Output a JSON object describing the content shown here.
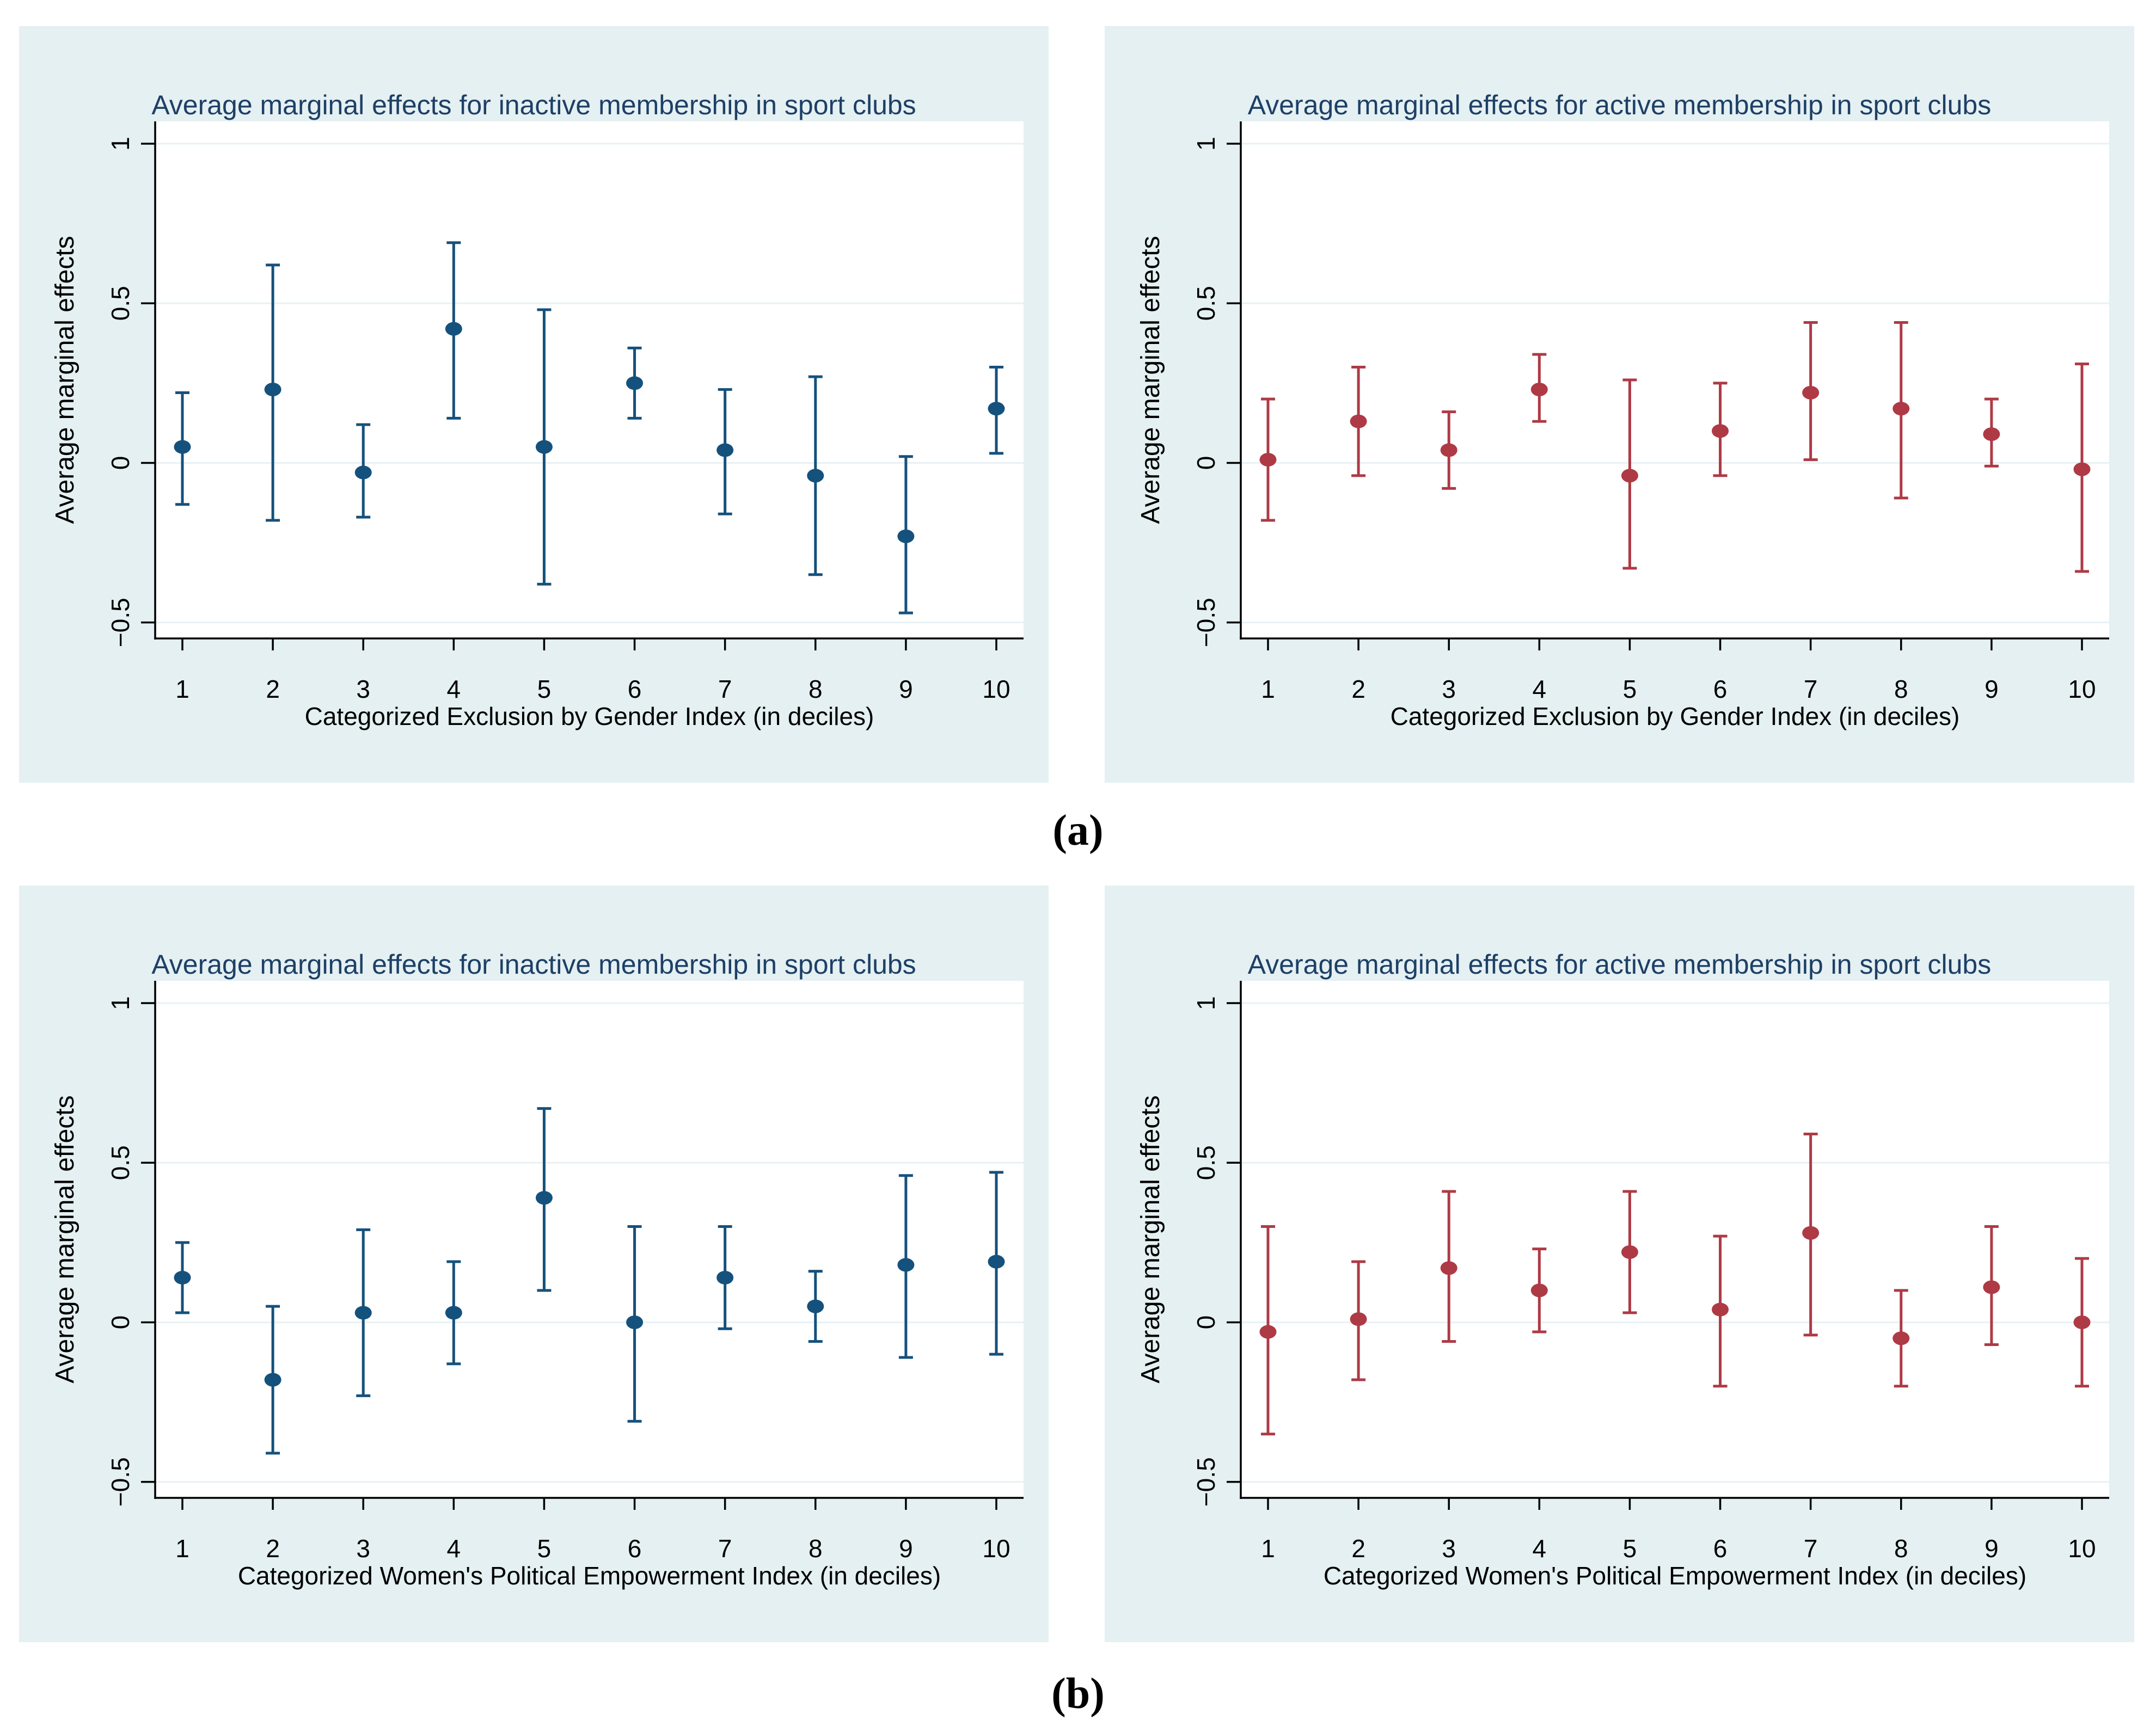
{
  "figure": {
    "panel_a_label": "(a)",
    "panel_b_label": "(b)"
  },
  "style": {
    "page_background": "#ffffff",
    "panel_background": "#e4f0f2",
    "plot_background": "#ffffff",
    "gridline_color": "#e8f1f5",
    "axis_color": "#000000",
    "title_color": "#1e3f66",
    "navy": "#15517d",
    "maroon": "#ae3a45"
  },
  "chart_data": [
    {
      "type": "scatter",
      "subtype": "point-estimates-with-95ci",
      "panel": "a",
      "slot": "top-left",
      "title": "Average marginal effects for inactive membership in sport clubs",
      "xlabel": "Categorized Exclusion by Gender Index (in deciles)",
      "ylabel": "Average marginal effects",
      "categories": [
        "1",
        "2",
        "3",
        "4",
        "5",
        "6",
        "7",
        "8",
        "9",
        "10"
      ],
      "estimates": [
        0.05,
        0.23,
        -0.03,
        0.42,
        0.05,
        0.25,
        0.04,
        -0.04,
        -0.23,
        0.17
      ],
      "ci_low": [
        -0.13,
        -0.18,
        -0.17,
        0.14,
        -0.38,
        0.14,
        -0.16,
        -0.35,
        -0.47,
        0.03
      ],
      "ci_high": [
        0.22,
        0.62,
        0.12,
        0.69,
        0.48,
        0.36,
        0.23,
        0.27,
        0.02,
        0.3
      ],
      "marker_color_key": "navy",
      "ylim": [
        -0.55,
        1.07
      ],
      "yticks": [
        1,
        0.5,
        0,
        -0.5
      ],
      "ytick_labels": [
        "1",
        "0.5",
        "0",
        "−0.5"
      ],
      "grid": true,
      "legend": "none"
    },
    {
      "type": "scatter",
      "subtype": "point-estimates-with-95ci",
      "panel": "a",
      "slot": "top-right",
      "title": "Average marginal effects for active membership in sport clubs",
      "xlabel": "Categorized Exclusion by Gender Index (in deciles)",
      "ylabel": "Average marginal effects",
      "categories": [
        "1",
        "2",
        "3",
        "4",
        "5",
        "6",
        "7",
        "8",
        "9",
        "10"
      ],
      "estimates": [
        0.01,
        0.13,
        0.04,
        0.23,
        -0.04,
        0.1,
        0.22,
        0.17,
        0.09,
        -0.02
      ],
      "ci_low": [
        -0.18,
        -0.04,
        -0.08,
        0.13,
        -0.33,
        -0.04,
        0.01,
        -0.11,
        -0.01,
        -0.34
      ],
      "ci_high": [
        0.2,
        0.3,
        0.16,
        0.34,
        0.26,
        0.25,
        0.44,
        0.44,
        0.2,
        0.31
      ],
      "marker_color_key": "maroon",
      "ylim": [
        -0.55,
        1.07
      ],
      "yticks": [
        1,
        0.5,
        0,
        -0.5
      ],
      "ytick_labels": [
        "1",
        "0.5",
        "0",
        "−0.5"
      ],
      "grid": true,
      "legend": "none"
    },
    {
      "type": "scatter",
      "subtype": "point-estimates-with-95ci",
      "panel": "b",
      "slot": "bottom-left",
      "title": "Average marginal effects for inactive membership in sport clubs",
      "xlabel": "Categorized Women's Political Empowerment Index (in deciles)",
      "ylabel": "Average marginal effects",
      "categories": [
        "1",
        "2",
        "3",
        "4",
        "5",
        "6",
        "7",
        "8",
        "9",
        "10"
      ],
      "estimates": [
        0.14,
        -0.18,
        0.03,
        0.03,
        0.39,
        0.0,
        0.14,
        0.05,
        0.18,
        0.19
      ],
      "ci_low": [
        0.03,
        -0.41,
        -0.23,
        -0.13,
        0.1,
        -0.31,
        -0.02,
        -0.06,
        -0.11,
        -0.1
      ],
      "ci_high": [
        0.25,
        0.05,
        0.29,
        0.19,
        0.67,
        0.3,
        0.3,
        0.16,
        0.46,
        0.47
      ],
      "marker_color_key": "navy",
      "ylim": [
        -0.55,
        1.07
      ],
      "yticks": [
        1,
        0.5,
        0,
        -0.5
      ],
      "ytick_labels": [
        "1",
        "0.5",
        "0",
        "−0.5"
      ],
      "grid": true,
      "legend": "none"
    },
    {
      "type": "scatter",
      "subtype": "point-estimates-with-95ci",
      "panel": "b",
      "slot": "bottom-right",
      "title": "Average marginal effects for active membership in sport clubs",
      "xlabel": "Categorized Women's Political Empowerment Index (in deciles)",
      "ylabel": "Average marginal effects",
      "categories": [
        "1",
        "2",
        "3",
        "4",
        "5",
        "6",
        "7",
        "8",
        "9",
        "10"
      ],
      "estimates": [
        -0.03,
        0.01,
        0.17,
        0.1,
        0.22,
        0.04,
        0.28,
        -0.05,
        0.11,
        0.0
      ],
      "ci_low": [
        -0.35,
        -0.18,
        -0.06,
        -0.03,
        0.03,
        -0.2,
        -0.04,
        -0.2,
        -0.07,
        -0.2
      ],
      "ci_high": [
        0.3,
        0.19,
        0.41,
        0.23,
        0.41,
        0.27,
        0.59,
        0.1,
        0.3,
        0.2
      ],
      "marker_color_key": "maroon",
      "ylim": [
        -0.55,
        1.07
      ],
      "yticks": [
        1,
        0.5,
        0,
        -0.5
      ],
      "ytick_labels": [
        "1",
        "0.5",
        "0",
        "−0.5"
      ],
      "grid": true,
      "legend": "none"
    }
  ]
}
